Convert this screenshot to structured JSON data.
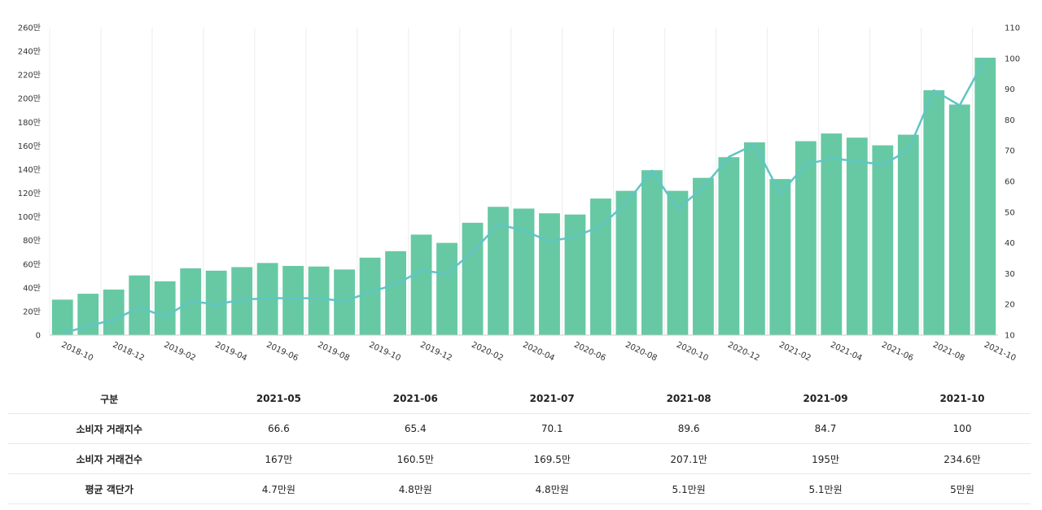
{
  "chart_data": {
    "type": "bar",
    "categories": [
      "2018-10",
      "2018-11",
      "2018-12",
      "2019-01",
      "2019-02",
      "2019-03",
      "2019-04",
      "2019-05",
      "2019-06",
      "2019-07",
      "2019-08",
      "2019-09",
      "2019-10",
      "2019-11",
      "2019-12",
      "2020-01",
      "2020-02",
      "2020-03",
      "2020-04",
      "2020-05",
      "2020-06",
      "2020-07",
      "2020-08",
      "2020-09",
      "2020-10",
      "2020-11",
      "2020-12",
      "2021-01",
      "2021-02",
      "2021-03",
      "2021-04",
      "2021-05",
      "2021-06",
      "2021-07",
      "2021-08",
      "2021-09",
      "2021-10"
    ],
    "x_tick_labels": [
      "2018-10",
      "2018-12",
      "2019-02",
      "2019-04",
      "2019-06",
      "2019-08",
      "2019-10",
      "2019-12",
      "2020-02",
      "2020-04",
      "2020-06",
      "2020-08",
      "2020-10",
      "2020-12",
      "2021-02",
      "2021-04",
      "2021-06",
      "2021-08",
      "2021-10"
    ],
    "y_left_ticks": [
      "0",
      "20만",
      "40만",
      "60만",
      "80만",
      "100만",
      "120만",
      "140만",
      "160만",
      "180만",
      "200만",
      "220만",
      "240만",
      "260만"
    ],
    "y_right_ticks": [
      "10",
      "20",
      "30",
      "40",
      "50",
      "60",
      "70",
      "80",
      "90",
      "100",
      "110"
    ],
    "ylim_left": [
      0,
      260
    ],
    "ylim_right": [
      10,
      110
    ],
    "grid": "vertical",
    "series": [
      {
        "type": "bar",
        "axis": "left",
        "color": "#66c9a4",
        "values": [
          30,
          35,
          38.5,
          50.5,
          45.5,
          56.5,
          54.5,
          57.5,
          61,
          58.5,
          58,
          55.5,
          65.5,
          71,
          85,
          78,
          95,
          108.5,
          107,
          103,
          102,
          115.5,
          122,
          139.5,
          122,
          133,
          150.5,
          163,
          132,
          164,
          170.5,
          167,
          160.5,
          169.5,
          207.1,
          195,
          234.6
        ]
      },
      {
        "type": "line",
        "axis": "right",
        "color": "#5fc5c4",
        "values": [
          10.5,
          13,
          15,
          19,
          16,
          21,
          20,
          21.5,
          22,
          22,
          22,
          21,
          24,
          26.5,
          31,
          30,
          37,
          46,
          44,
          40.5,
          42,
          45.5,
          53,
          63.5,
          51,
          58,
          68,
          72,
          56,
          65.5,
          67.5,
          66.6,
          65.4,
          70.1,
          89.6,
          84.7,
          100
        ]
      }
    ]
  },
  "table": {
    "header": [
      "구분",
      "2021-05",
      "2021-06",
      "2021-07",
      "2021-08",
      "2021-09",
      "2021-10"
    ],
    "rows": [
      {
        "label": "소비자 거래지수",
        "cells": [
          "66.6",
          "65.4",
          "70.1",
          "89.6",
          "84.7",
          "100"
        ]
      },
      {
        "label": "소비자 거래건수",
        "cells": [
          "167만",
          "160.5만",
          "169.5만",
          "207.1만",
          "195만",
          "234.6만"
        ]
      },
      {
        "label": "평균 객단가",
        "cells": [
          "4.7만원",
          "4.8만원",
          "4.8만원",
          "5.1만원",
          "5.1만원",
          "5만원"
        ]
      }
    ]
  }
}
